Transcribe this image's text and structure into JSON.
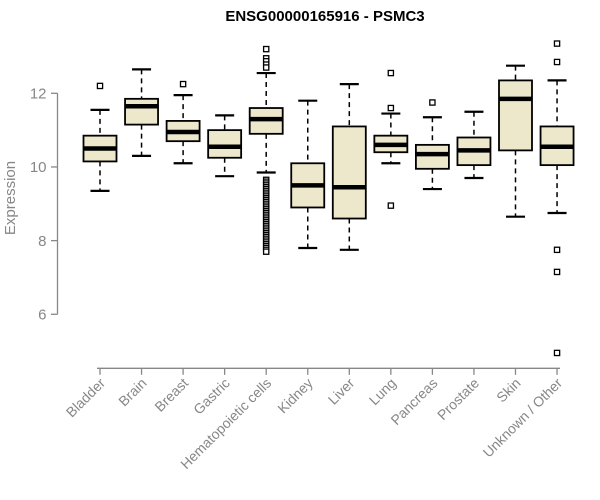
{
  "chart_data": {
    "type": "box",
    "title": "ENSG00000165916 - PSMC3",
    "xlabel": "",
    "ylabel": "Expression",
    "y_ticks": [
      6,
      8,
      10,
      12
    ],
    "ylim": [
      4.4,
      13.6
    ],
    "grid": false,
    "legend": false,
    "categories": [
      "Bladder",
      "Brain",
      "Breast",
      "Gastric",
      "Hematopoietic cells",
      "Kidney",
      "Liver",
      "Lung",
      "Pancreas",
      "Prostate",
      "Skin",
      "Unknown / Other"
    ],
    "boxes": [
      {
        "category": "Bladder",
        "low": 9.35,
        "q1": 10.15,
        "median": 10.5,
        "q3": 10.85,
        "high": 11.55,
        "outliers": [
          12.2
        ]
      },
      {
        "category": "Brain",
        "low": 10.3,
        "q1": 11.15,
        "median": 11.65,
        "q3": 11.85,
        "high": 12.65,
        "outliers": []
      },
      {
        "category": "Breast",
        "low": 10.1,
        "q1": 10.7,
        "median": 10.95,
        "q3": 11.25,
        "high": 11.95,
        "outliers": [
          12.25
        ]
      },
      {
        "category": "Gastric",
        "low": 9.75,
        "q1": 10.25,
        "median": 10.55,
        "q3": 11.0,
        "high": 11.4,
        "outliers": []
      },
      {
        "category": "Hematopoietic cells",
        "low": 9.85,
        "q1": 10.9,
        "median": 11.3,
        "q3": 11.6,
        "high": 12.55,
        "outliers": [
          13.2,
          12.95,
          12.87,
          12.78,
          12.7,
          9.65,
          9.6,
          9.55,
          9.5,
          9.45,
          9.4,
          9.35,
          9.3,
          9.25,
          9.2,
          9.15,
          9.1,
          9.05,
          9.0,
          8.95,
          8.9,
          8.85,
          8.8,
          8.75,
          8.7,
          8.65,
          8.6,
          8.55,
          8.5,
          8.45,
          8.4,
          8.35,
          8.3,
          8.25,
          8.2,
          8.15,
          8.1,
          8.05,
          8.0,
          7.95,
          7.9,
          7.85,
          7.8,
          7.75,
          7.7
        ]
      },
      {
        "category": "Kidney",
        "low": 7.8,
        "q1": 8.9,
        "median": 9.5,
        "q3": 10.1,
        "high": 11.8,
        "outliers": []
      },
      {
        "category": "Liver",
        "low": 7.75,
        "q1": 8.6,
        "median": 9.45,
        "q3": 11.1,
        "high": 12.25,
        "outliers": []
      },
      {
        "category": "Lung",
        "low": 10.1,
        "q1": 10.4,
        "median": 10.6,
        "q3": 10.85,
        "high": 11.45,
        "outliers": [
          12.55,
          11.6,
          8.95
        ]
      },
      {
        "category": "Pancreas",
        "low": 9.4,
        "q1": 9.95,
        "median": 10.35,
        "q3": 10.6,
        "high": 11.35,
        "outliers": [
          11.75
        ]
      },
      {
        "category": "Prostate",
        "low": 9.7,
        "q1": 10.05,
        "median": 10.45,
        "q3": 10.8,
        "high": 11.5,
        "outliers": []
      },
      {
        "category": "Skin",
        "low": 8.65,
        "q1": 10.45,
        "median": 11.85,
        "q3": 12.35,
        "high": 12.75,
        "outliers": []
      },
      {
        "category": "Unknown / Other",
        "low": 8.75,
        "q1": 10.05,
        "median": 10.55,
        "q3": 11.1,
        "high": 12.35,
        "outliers": [
          13.35,
          12.85,
          7.75,
          7.15,
          4.95
        ]
      }
    ],
    "style": {
      "box_fill": "#EDE7CB",
      "box_stroke": "#000000",
      "median_color": "#000000",
      "outlier_stroke": "#000000",
      "axis_color": "#878787",
      "title_color": "#000000",
      "background": "#FFFFFF"
    }
  }
}
